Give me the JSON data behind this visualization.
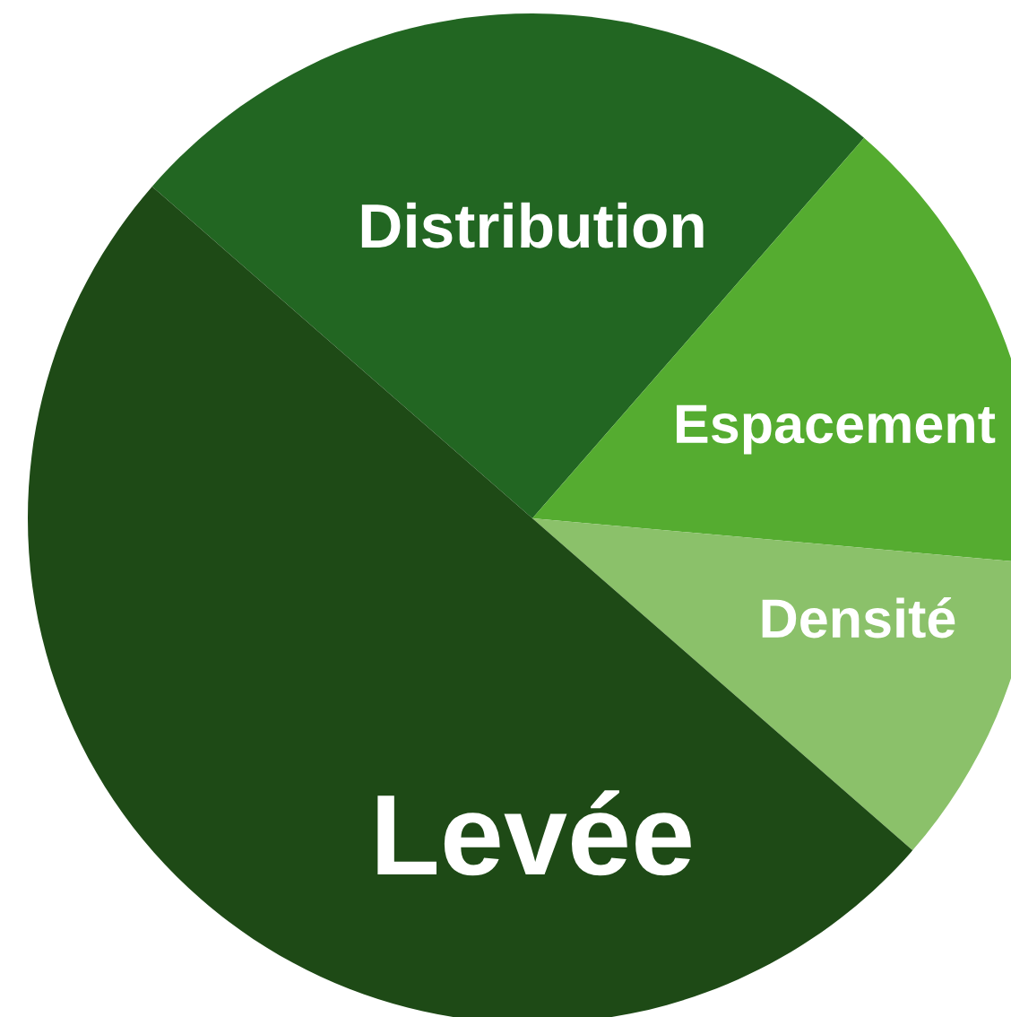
{
  "chart_data": {
    "type": "pie",
    "categories": [
      "Distribution",
      "Espacement",
      "Densité",
      "Levée"
    ],
    "values": [
      25,
      15,
      10,
      50
    ],
    "colors": [
      "#226622",
      "#55ac30",
      "#8bc16a",
      "#1e4a16"
    ]
  }
}
